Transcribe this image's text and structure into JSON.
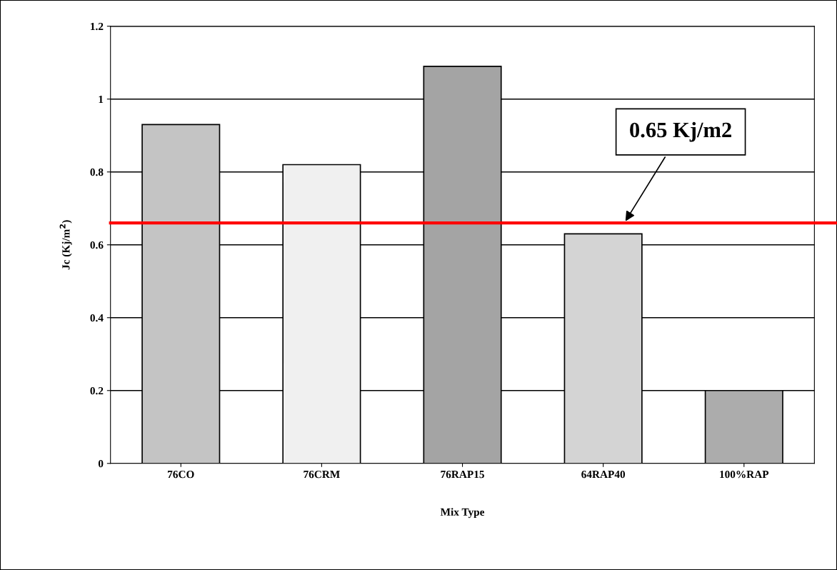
{
  "chart_data": {
    "type": "bar",
    "xlabel": "Mix Type",
    "ylabel": "Jc (Kj/m$^{2}$)",
    "categories": [
      "76CO",
      "76CRM",
      "76RAP15",
      "64RAP40",
      "100%RAP"
    ],
    "values": [
      0.93,
      0.82,
      1.09,
      0.63,
      0.2
    ],
    "colors": [
      "#c4c4c4",
      "#f0f0f0",
      "#a4a4a4",
      "#d4d4d4",
      "#acacac"
    ],
    "ylim": [
      0,
      1.2
    ],
    "yticks": [
      0,
      0.2,
      0.4,
      0.6,
      0.8,
      1,
      1.2
    ],
    "grid": "y",
    "ref_lines": [
      {
        "axis": "y",
        "value": 0.66,
        "label": "0.65 Kj/m2",
        "color": "#ff0000"
      }
    ]
  }
}
